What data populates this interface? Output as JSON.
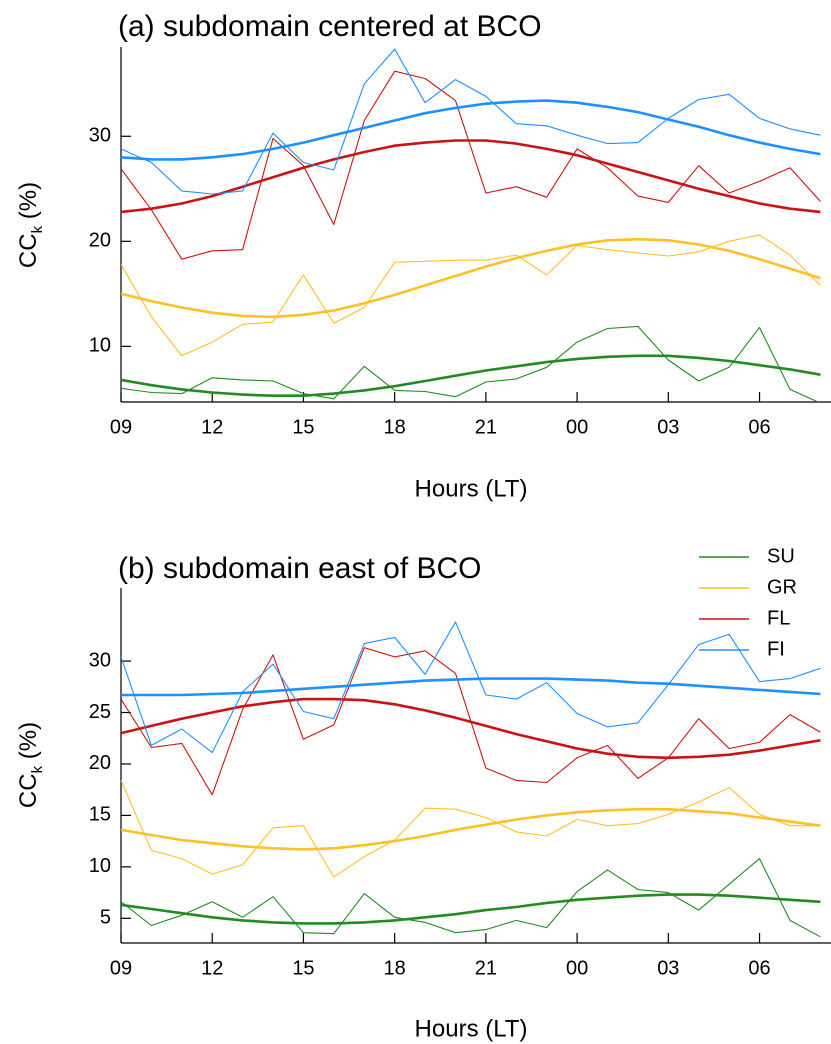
{
  "chart_data": [
    {
      "type": "line",
      "title": "(a) subdomain centered at BCO",
      "xlabel": "Hours (LT)",
      "ylabel": [
        "CC",
        "k",
        " (%)"
      ],
      "x": [
        0,
        1,
        2,
        3,
        4,
        5,
        6,
        7,
        8,
        9,
        10,
        11,
        12,
        13,
        14,
        15,
        16,
        17,
        18,
        19,
        20,
        21,
        22,
        23
      ],
      "xlim": [
        0,
        23.35
      ],
      "ylim": [
        4.7,
        38.5
      ],
      "xticks": [
        {
          "value": 0,
          "label": "09"
        },
        {
          "value": 3,
          "label": "12"
        },
        {
          "value": 6,
          "label": "15"
        },
        {
          "value": 9,
          "label": "18"
        },
        {
          "value": 12,
          "label": "21"
        },
        {
          "value": 15,
          "label": "00"
        },
        {
          "value": 18,
          "label": "03"
        },
        {
          "value": 21,
          "label": "06"
        }
      ],
      "yticks": [
        10,
        20,
        30
      ],
      "grid": false,
      "legend": false,
      "series": [
        {
          "color": "#228b22",
          "values": [
            6,
            5.6,
            5.5,
            7,
            6.8,
            6.7,
            5.5,
            5,
            8.1,
            5.8,
            5.7,
            5.2,
            6.6,
            6.9,
            8,
            10.4,
            11.7,
            11.9,
            8.7,
            6.7,
            8,
            11.8,
            5.9,
            4.6
          ],
          "smooth": [
            6.8,
            6.3,
            5.9,
            5.6,
            5.4,
            5.3,
            5.3,
            5.5,
            5.8,
            6.2,
            6.7,
            7.2,
            7.7,
            8.1,
            8.5,
            8.8,
            9.0,
            9.1,
            9.1,
            8.9,
            8.6,
            8.2,
            7.8,
            7.3
          ]
        },
        {
          "color": "#ffc125",
          "values": [
            17.8,
            12.8,
            9.1,
            10.4,
            12.1,
            12.3,
            16.8,
            12.2,
            13.7,
            18,
            18.1,
            18.2,
            18.2,
            18.7,
            16.8,
            19.6,
            19.2,
            18.9,
            18.6,
            19,
            20,
            20.6,
            18.7,
            15.8
          ],
          "smooth": [
            15,
            14.3,
            13.7,
            13.2,
            12.9,
            12.8,
            13,
            13.4,
            14.1,
            14.9,
            15.8,
            16.7,
            17.6,
            18.4,
            19.1,
            19.7,
            20.1,
            20.2,
            20.1,
            19.7,
            19.1,
            18.3,
            17.4,
            16.5
          ]
        },
        {
          "color": "#c81414",
          "values": [
            26.9,
            23,
            18.3,
            19.1,
            19.2,
            29.8,
            27.2,
            21.6,
            31.5,
            36.2,
            35.5,
            33.4,
            24.6,
            25.2,
            24.2,
            28.8,
            27,
            24.3,
            23.7,
            27.2,
            24.6,
            25.7,
            27,
            23.8
          ],
          "smooth": [
            22.8,
            23.1,
            23.6,
            24.3,
            25.2,
            26.1,
            27.0,
            27.8,
            28.5,
            29.1,
            29.4,
            29.6,
            29.6,
            29.3,
            28.8,
            28.2,
            27.4,
            26.6,
            25.8,
            25.0,
            24.3,
            23.6,
            23.1,
            22.8
          ]
        },
        {
          "color": "#1e90ff",
          "values": [
            28.8,
            27.5,
            24.8,
            24.5,
            24.8,
            30.3,
            27.5,
            26.8,
            35,
            38.3,
            33.2,
            35.4,
            33.8,
            31.2,
            31,
            30.1,
            29.3,
            29.4,
            31.7,
            33.5,
            34,
            31.7,
            30.7,
            30.1
          ],
          "smooth": [
            28,
            27.8,
            27.8,
            28,
            28.3,
            28.8,
            29.4,
            30.1,
            30.8,
            31.5,
            32.2,
            32.7,
            33.1,
            33.3,
            33.4,
            33.2,
            32.8,
            32.3,
            31.6,
            30.9,
            30.1,
            29.4,
            28.8,
            28.3
          ]
        }
      ]
    },
    {
      "type": "line",
      "title": "(b) subdomain east of BCO",
      "xlabel": "Hours (LT)",
      "ylabel": [
        "CC",
        "k",
        " (%)"
      ],
      "x": [
        0,
        1,
        2,
        3,
        4,
        5,
        6,
        7,
        8,
        9,
        10,
        11,
        12,
        13,
        14,
        15,
        16,
        17,
        18,
        19,
        20,
        21,
        22,
        23
      ],
      "xlim": [
        0,
        23.35
      ],
      "ylim": [
        2.6,
        37.1
      ],
      "xticks": [
        {
          "value": 0,
          "label": "09"
        },
        {
          "value": 3,
          "label": "12"
        },
        {
          "value": 6,
          "label": "15"
        },
        {
          "value": 9,
          "label": "18"
        },
        {
          "value": 12,
          "label": "21"
        },
        {
          "value": 15,
          "label": "00"
        },
        {
          "value": 18,
          "label": "03"
        },
        {
          "value": 21,
          "label": "06"
        }
      ],
      "yticks": [
        5,
        10,
        15,
        20,
        25,
        30
      ],
      "grid": false,
      "legend": true,
      "legend_position": "top-right",
      "series": [
        {
          "name": "SU",
          "color": "#228b22",
          "values": [
            6.6,
            4.3,
            5.3,
            6.6,
            5.1,
            7.1,
            3.6,
            3.5,
            7.4,
            5.1,
            4.6,
            3.6,
            3.9,
            4.8,
            4.1,
            7.6,
            9.7,
            7.8,
            7.5,
            5.8,
            8.3,
            10.8,
            4.8,
            3.2
          ],
          "smooth": [
            6.3,
            5.9,
            5.5,
            5.1,
            4.8,
            4.6,
            4.5,
            4.5,
            4.6,
            4.8,
            5.1,
            5.4,
            5.8,
            6.1,
            6.5,
            6.8,
            7.0,
            7.2,
            7.3,
            7.3,
            7.2,
            7.0,
            6.8,
            6.6
          ]
        },
        {
          "name": "GR",
          "color": "#ffc125",
          "values": [
            18.4,
            11.6,
            10.8,
            9.3,
            10.2,
            13.8,
            14,
            9,
            11,
            12.6,
            15.7,
            15.6,
            14.8,
            13.4,
            13,
            14.6,
            14,
            14.2,
            15.1,
            16.3,
            17.7,
            15.1,
            14,
            14
          ],
          "smooth": [
            13.6,
            13.1,
            12.6,
            12.3,
            12,
            11.8,
            11.7,
            11.8,
            12.1,
            12.5,
            13,
            13.6,
            14.1,
            14.6,
            15,
            15.3,
            15.5,
            15.6,
            15.6,
            15.4,
            15.2,
            14.8,
            14.4,
            14
          ]
        },
        {
          "name": "FL",
          "color": "#c81414",
          "values": [
            26.3,
            21.6,
            22,
            17,
            25.3,
            30.6,
            22.4,
            23.8,
            31.3,
            30.4,
            31,
            28.8,
            19.6,
            18.4,
            18.2,
            20.6,
            21.8,
            18.6,
            20.6,
            24.4,
            21.5,
            22.1,
            24.8,
            23.1
          ],
          "smooth": [
            23,
            23.7,
            24.4,
            25,
            25.6,
            26,
            26.3,
            26.3,
            26.2,
            25.8,
            25.2,
            24.5,
            23.7,
            22.9,
            22.2,
            21.5,
            21,
            20.7,
            20.6,
            20.7,
            20.9,
            21.3,
            21.8,
            22.3
          ]
        },
        {
          "name": "FI",
          "color": "#1e90ff",
          "values": [
            30.4,
            21.8,
            23.4,
            21.1,
            27,
            29.7,
            25.1,
            24.4,
            31.7,
            32.3,
            28.7,
            33.8,
            26.7,
            26.3,
            27.9,
            24.9,
            23.6,
            24,
            27.7,
            31.6,
            32.6,
            28,
            28.3,
            29.3
          ],
          "smooth": [
            26.7,
            26.7,
            26.7,
            26.8,
            26.9,
            27.1,
            27.3,
            27.5,
            27.7,
            27.9,
            28.1,
            28.2,
            28.3,
            28.3,
            28.3,
            28.2,
            28.1,
            27.9,
            27.8,
            27.6,
            27.4,
            27.2,
            27,
            26.8
          ]
        }
      ]
    }
  ]
}
